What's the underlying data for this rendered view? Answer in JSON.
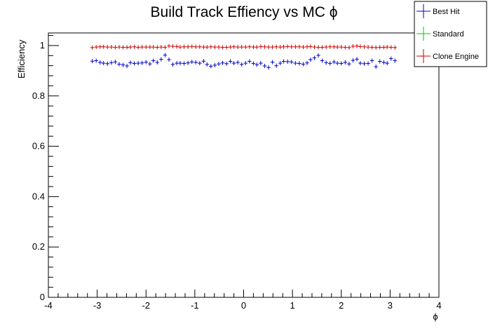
{
  "chart_data": {
    "type": "scatter",
    "title": "Build Track Effiency vs MC ϕ",
    "xlabel": "ϕ",
    "ylabel": "Efficiency",
    "xlim": [
      -4,
      4
    ],
    "ylim": [
      0,
      1.05
    ],
    "x_ticks": [
      "-4",
      "-3",
      "-2",
      "-1",
      "0",
      "1",
      "2",
      "3",
      "4"
    ],
    "y_ticks": [
      "0",
      "0.2",
      "0.4",
      "0.6",
      "0.8",
      "1"
    ],
    "grid": false,
    "legend_position": "top-right",
    "legend": [
      "Best Hit",
      "Standard",
      "Clone Engine"
    ],
    "colors": {
      "Best Hit": "#0000cc",
      "Standard": "#00cc00",
      "Clone Engine": "#cc0000"
    },
    "bin_width": 0.0785,
    "series": [
      {
        "name": "Best Hit",
        "x": [
          -3.1,
          -3.02,
          -2.94,
          -2.87,
          -2.79,
          -2.71,
          -2.63,
          -2.55,
          -2.47,
          -2.39,
          -2.32,
          -2.24,
          -2.16,
          -2.08,
          -2.0,
          -1.92,
          -1.85,
          -1.77,
          -1.69,
          -1.61,
          -1.53,
          -1.45,
          -1.37,
          -1.3,
          -1.22,
          -1.14,
          -1.06,
          -0.98,
          -0.9,
          -0.82,
          -0.75,
          -0.67,
          -0.59,
          -0.51,
          -0.43,
          -0.35,
          -0.27,
          -0.2,
          -0.12,
          -0.04,
          0.04,
          0.12,
          0.2,
          0.27,
          0.35,
          0.43,
          0.51,
          0.59,
          0.67,
          0.75,
          0.82,
          0.9,
          0.98,
          1.06,
          1.14,
          1.22,
          1.3,
          1.37,
          1.45,
          1.53,
          1.61,
          1.69,
          1.77,
          1.85,
          1.92,
          2.0,
          2.08,
          2.16,
          2.24,
          2.32,
          2.39,
          2.47,
          2.55,
          2.63,
          2.71,
          2.79,
          2.87,
          2.94,
          3.02,
          3.1
        ],
        "y": [
          0.938,
          0.94,
          0.933,
          0.93,
          0.928,
          0.932,
          0.935,
          0.926,
          0.923,
          0.919,
          0.932,
          0.929,
          0.93,
          0.931,
          0.934,
          0.927,
          0.94,
          0.933,
          0.945,
          0.962,
          0.944,
          0.925,
          0.93,
          0.93,
          0.929,
          0.931,
          0.935,
          0.933,
          0.93,
          0.938,
          0.925,
          0.918,
          0.922,
          0.927,
          0.931,
          0.928,
          0.937,
          0.93,
          0.933,
          0.925,
          0.93,
          0.937,
          0.929,
          0.924,
          0.93,
          0.919,
          0.913,
          0.934,
          0.92,
          0.93,
          0.937,
          0.936,
          0.935,
          0.93,
          0.929,
          0.926,
          0.931,
          0.944,
          0.951,
          0.961,
          0.94,
          0.932,
          0.929,
          0.935,
          0.93,
          0.929,
          0.933,
          0.927,
          0.941,
          0.946,
          0.93,
          0.928,
          0.929,
          0.94,
          0.916,
          0.937,
          0.933,
          0.93,
          0.948,
          0.94
        ]
      },
      {
        "name": "Standard",
        "x": [],
        "y": []
      },
      {
        "name": "Clone Engine",
        "x": [
          -3.1,
          -3.02,
          -2.94,
          -2.87,
          -2.79,
          -2.71,
          -2.63,
          -2.55,
          -2.47,
          -2.39,
          -2.32,
          -2.24,
          -2.16,
          -2.08,
          -2.0,
          -1.92,
          -1.85,
          -1.77,
          -1.69,
          -1.61,
          -1.53,
          -1.45,
          -1.37,
          -1.3,
          -1.22,
          -1.14,
          -1.06,
          -0.98,
          -0.9,
          -0.82,
          -0.75,
          -0.67,
          -0.59,
          -0.51,
          -0.43,
          -0.35,
          -0.27,
          -0.2,
          -0.12,
          -0.04,
          0.04,
          0.12,
          0.2,
          0.27,
          0.35,
          0.43,
          0.51,
          0.59,
          0.67,
          0.75,
          0.82,
          0.9,
          0.98,
          1.06,
          1.14,
          1.22,
          1.3,
          1.37,
          1.45,
          1.53,
          1.61,
          1.69,
          1.77,
          1.85,
          1.92,
          2.0,
          2.08,
          2.16,
          2.24,
          2.32,
          2.39,
          2.47,
          2.55,
          2.63,
          2.71,
          2.79,
          2.87,
          2.94,
          3.02,
          3.1
        ],
        "y": [
          0.992,
          0.994,
          0.995,
          0.995,
          0.994,
          0.994,
          0.993,
          0.994,
          0.993,
          0.993,
          0.994,
          0.995,
          0.993,
          0.994,
          0.994,
          0.994,
          0.994,
          0.993,
          0.994,
          0.993,
          0.998,
          0.997,
          0.996,
          0.994,
          0.995,
          0.995,
          0.996,
          0.995,
          0.995,
          0.994,
          0.994,
          0.995,
          0.994,
          0.994,
          0.993,
          0.993,
          0.994,
          0.995,
          0.994,
          0.994,
          0.994,
          0.995,
          0.994,
          0.994,
          0.996,
          0.995,
          0.994,
          0.994,
          0.995,
          0.994,
          0.995,
          0.996,
          0.995,
          0.995,
          0.995,
          0.994,
          0.995,
          0.996,
          0.994,
          0.993,
          0.993,
          0.994,
          0.995,
          0.995,
          0.994,
          0.994,
          0.993,
          0.992,
          0.997,
          0.998,
          0.996,
          0.995,
          0.994,
          0.993,
          0.992,
          0.993,
          0.993,
          0.994,
          0.993,
          0.992
        ]
      }
    ]
  }
}
